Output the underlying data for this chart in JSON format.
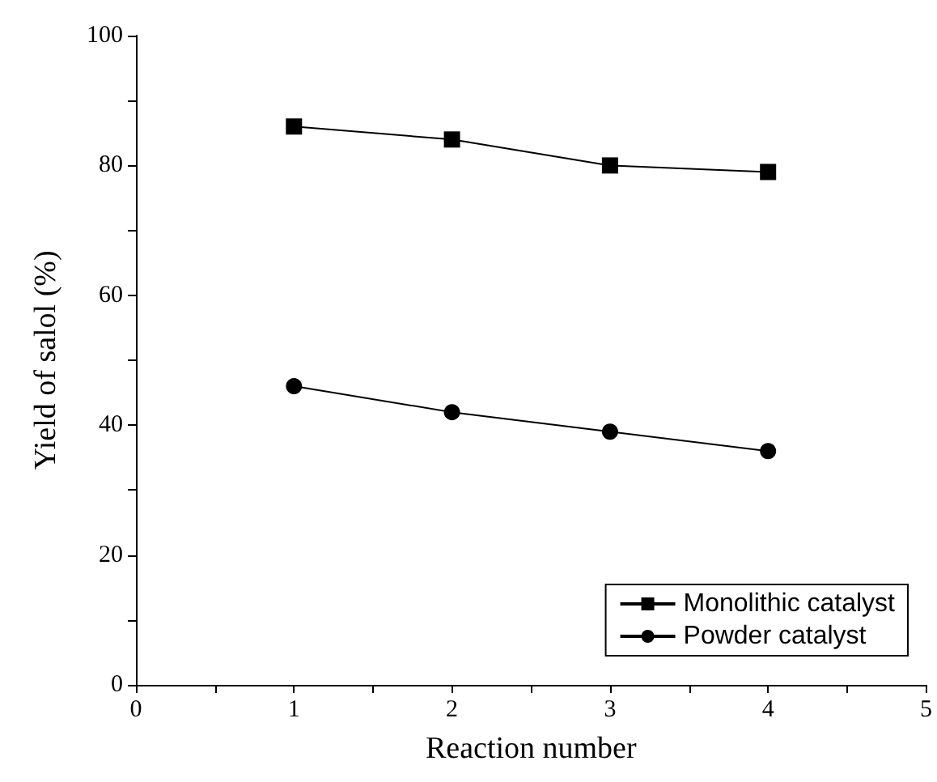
{
  "chart_data": {
    "type": "line",
    "xlabel": "Reaction number",
    "ylabel": "Yield of salol (%)",
    "x": [
      1,
      2,
      3,
      4
    ],
    "series": [
      {
        "name": "Monolithic catalyst",
        "color": "#000000",
        "marker": "square",
        "values": [
          86,
          84,
          80,
          79
        ]
      },
      {
        "name": "Powder catalyst",
        "color": "#000000",
        "marker": "circle",
        "values": [
          46,
          42,
          39,
          36
        ]
      }
    ],
    "xlim": [
      0,
      5
    ],
    "xticks": [
      0,
      {
        "value": 0.5,
        "label": null
      },
      1,
      {
        "value": 1.5,
        "label": null
      },
      2,
      {
        "value": 2.5,
        "label": null
      },
      3,
      {
        "value": 3.5,
        "label": null
      },
      4,
      {
        "value": 4.5,
        "label": null
      },
      5
    ],
    "ylim": [
      0,
      100
    ],
    "yticks": [
      0,
      {
        "value": 10,
        "label": null
      },
      20,
      {
        "value": 30,
        "label": null
      },
      40,
      {
        "value": 50,
        "label": null
      },
      60,
      {
        "value": 70,
        "label": null
      },
      80,
      {
        "value": 90,
        "label": null
      },
      100
    ],
    "grid": false,
    "legend": "bottom right",
    "line_style": "solid"
  }
}
